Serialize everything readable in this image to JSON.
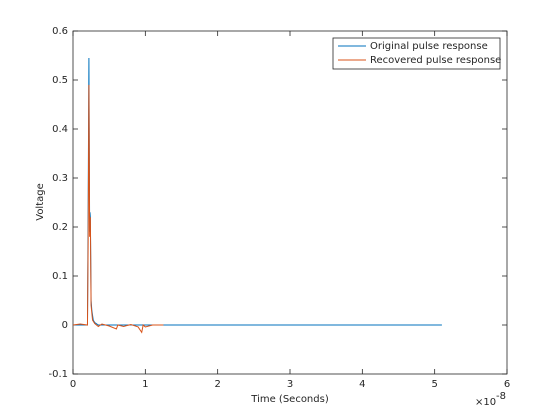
{
  "chart_data": {
    "type": "line",
    "xlabel": "Time (Seconds)",
    "ylabel": "Voltage",
    "x_multiplier": {
      "base": "×10",
      "exponent": "-8"
    },
    "xlim": [
      0,
      6
    ],
    "xticks": [
      0,
      1,
      2,
      3,
      4,
      5,
      6
    ],
    "ylim": [
      -0.1,
      0.6
    ],
    "yticks": [
      -0.1,
      0,
      0.1,
      0.2,
      0.3,
      0.4,
      0.5,
      0.6
    ],
    "grid": false,
    "legend": "upper right",
    "series": [
      {
        "name": "Original pulse response",
        "color": "#0072BD",
        "x": [
          0,
          0.2,
          0.21,
          0.22,
          0.23,
          0.235,
          0.24,
          0.25,
          0.26,
          0.27,
          0.28,
          0.3,
          0.35,
          0.4,
          5.1
        ],
        "values": [
          0,
          0,
          0.25,
          0.545,
          0.19,
          0.23,
          0.22,
          0.05,
          0.03,
          0.02,
          0.01,
          0.005,
          0,
          0,
          0
        ]
      },
      {
        "name": "Recovered pulse response",
        "color": "#D95319",
        "x": [
          0,
          0.1,
          0.2,
          0.21,
          0.22,
          0.23,
          0.24,
          0.25,
          0.27,
          0.3,
          0.35,
          0.4,
          0.5,
          0.6,
          0.62,
          0.7,
          0.8,
          0.9,
          0.95,
          0.97,
          1.0,
          1.1,
          1.25
        ],
        "values": [
          0,
          0.002,
          0,
          0.18,
          0.49,
          0.18,
          0.22,
          0.04,
          0.01,
          0.003,
          -0.003,
          0.002,
          -0.002,
          -0.008,
          0,
          -0.003,
          0.001,
          -0.004,
          -0.015,
          0,
          -0.004,
          0,
          0
        ]
      }
    ]
  }
}
